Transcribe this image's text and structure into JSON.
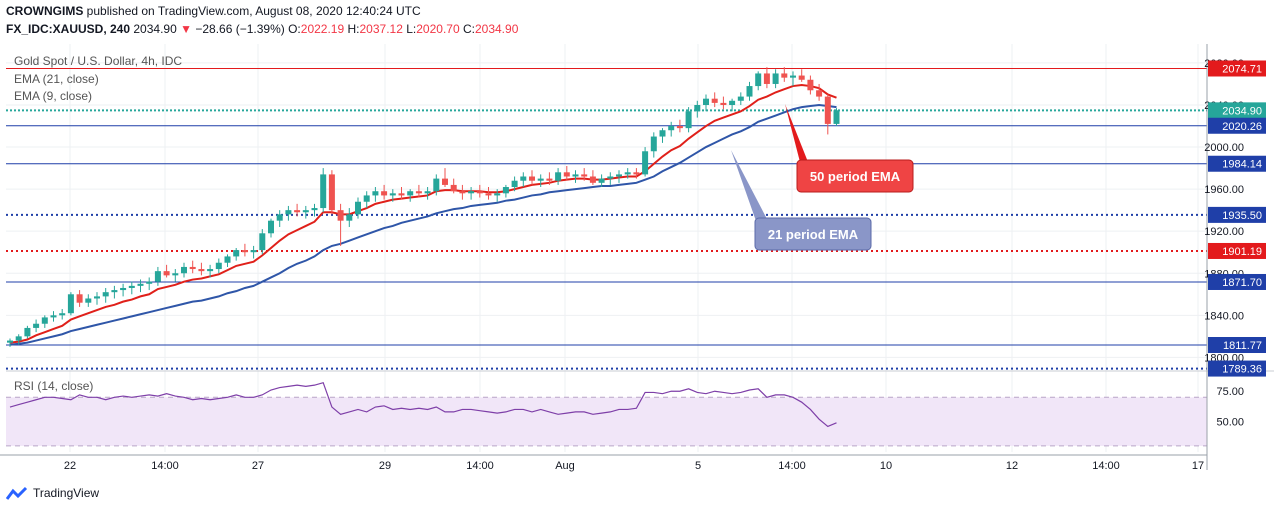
{
  "header": {
    "publisher": "CROWNGIMS",
    "published_text": "published on TradingView.com, August 08, 2020 12:40:24 UTC",
    "symbol": "FX_IDC:XAUUSD, 240",
    "price": "2034.90",
    "change_arrow": "▼",
    "change": "−28.66 (−1.39%)",
    "o_label": "O:",
    "o": "2022.19",
    "h_label": "H:",
    "h": "2037.12",
    "l_label": "L:",
    "l": "2020.70",
    "c_label": "C:",
    "c": "2034.90"
  },
  "legend": {
    "title": "Gold Spot / U.S. Dollar, 4h, IDC",
    "ema21": "EMA (21, close)",
    "ema9": "EMA (9, close)",
    "rsi": "RSI (14, close)"
  },
  "annotations": {
    "ema50_label": "50 period EMA",
    "ema21_label": "21 period EMA"
  },
  "footer": {
    "brand": "TradingView"
  },
  "colors": {
    "up": "#26a69a",
    "down": "#ef5350",
    "ema_fast": "#e0201a",
    "ema_slow": "#2f56a8",
    "rsi": "#7e3fa8",
    "rsi_band": "#f1e6f8",
    "level_red": "#e31a1c",
    "level_blue": "#1f3fa8"
  },
  "chart_data": {
    "type": "candlestick",
    "title": "Gold Spot / U.S. Dollar, 4h, IDC",
    "price_axis_ticks": [
      2080.0,
      2040.0,
      2000.0,
      1960.0,
      1920.0,
      1880.0,
      1840.0,
      1800.0
    ],
    "price_axis_ticks_text": [
      "2080.00",
      "2040.00",
      "2000.00",
      "1960.00",
      "1920.00",
      "1880.00",
      "1840.00",
      "1800.00"
    ],
    "x_ticks": [
      "22",
      "14:00",
      "27",
      "29",
      "14:00",
      "Aug",
      "5",
      "14:00",
      "10",
      "12",
      "14:00",
      "17"
    ],
    "levels": [
      {
        "value": 2074.71,
        "label": "2074.71",
        "color": "red",
        "style": "solid"
      },
      {
        "value": 2034.9,
        "label": "2034.90",
        "color": "green",
        "style": "dotted"
      },
      {
        "value": 2020.26,
        "label": "2020.26",
        "color": "blue",
        "style": "solid"
      },
      {
        "value": 1984.14,
        "label": "1984.14",
        "color": "blue",
        "style": "solid"
      },
      {
        "value": 1935.5,
        "label": "1935.50",
        "color": "blue",
        "style": "dotted"
      },
      {
        "value": 1901.19,
        "label": "1901.19",
        "color": "red",
        "style": "dotted"
      },
      {
        "value": 1871.7,
        "label": "1871.70",
        "color": "blue",
        "style": "solid"
      },
      {
        "value": 1811.77,
        "label": "1811.77",
        "color": "blue",
        "style": "solid"
      },
      {
        "value": 1789.36,
        "label": "1789.36",
        "color": "blue",
        "style": "dotted"
      }
    ],
    "rsi_ticks": [
      75.0,
      50.0
    ],
    "rsi_ticks_text": [
      "75.00",
      "50.00"
    ],
    "rsi_band": [
      70,
      30
    ],
    "candles_ohlc": [
      [
        1814,
        1818,
        1810,
        1816
      ],
      [
        1816,
        1822,
        1812,
        1820
      ],
      [
        1820,
        1830,
        1818,
        1828
      ],
      [
        1828,
        1836,
        1824,
        1832
      ],
      [
        1832,
        1840,
        1828,
        1838
      ],
      [
        1838,
        1844,
        1834,
        1840
      ],
      [
        1840,
        1846,
        1836,
        1842
      ],
      [
        1842,
        1862,
        1840,
        1860
      ],
      [
        1860,
        1864,
        1848,
        1852
      ],
      [
        1852,
        1860,
        1848,
        1856
      ],
      [
        1856,
        1862,
        1850,
        1858
      ],
      [
        1858,
        1866,
        1852,
        1862
      ],
      [
        1862,
        1868,
        1856,
        1864
      ],
      [
        1864,
        1870,
        1858,
        1866
      ],
      [
        1866,
        1872,
        1860,
        1868
      ],
      [
        1868,
        1874,
        1862,
        1870
      ],
      [
        1870,
        1876,
        1864,
        1872
      ],
      [
        1872,
        1886,
        1868,
        1882
      ],
      [
        1882,
        1888,
        1876,
        1878
      ],
      [
        1878,
        1884,
        1872,
        1880
      ],
      [
        1880,
        1890,
        1876,
        1886
      ],
      [
        1886,
        1892,
        1880,
        1884
      ],
      [
        1884,
        1890,
        1878,
        1882
      ],
      [
        1882,
        1888,
        1876,
        1884
      ],
      [
        1884,
        1894,
        1880,
        1890
      ],
      [
        1890,
        1898,
        1886,
        1896
      ],
      [
        1896,
        1904,
        1892,
        1902
      ],
      [
        1902,
        1908,
        1896,
        1900
      ],
      [
        1900,
        1906,
        1894,
        1902
      ],
      [
        1902,
        1922,
        1898,
        1918
      ],
      [
        1918,
        1932,
        1914,
        1930
      ],
      [
        1930,
        1940,
        1924,
        1936
      ],
      [
        1936,
        1944,
        1930,
        1940
      ],
      [
        1940,
        1946,
        1934,
        1938
      ],
      [
        1938,
        1944,
        1932,
        1940
      ],
      [
        1940,
        1946,
        1934,
        1942
      ],
      [
        1942,
        1980,
        1938,
        1974
      ],
      [
        1974,
        1978,
        1936,
        1940
      ],
      [
        1940,
        1946,
        1906,
        1930
      ],
      [
        1930,
        1942,
        1924,
        1936
      ],
      [
        1936,
        1952,
        1932,
        1948
      ],
      [
        1948,
        1958,
        1942,
        1954
      ],
      [
        1954,
        1962,
        1948,
        1958
      ],
      [
        1958,
        1964,
        1950,
        1954
      ],
      [
        1954,
        1960,
        1948,
        1956
      ],
      [
        1956,
        1962,
        1950,
        1954
      ],
      [
        1954,
        1960,
        1948,
        1958
      ],
      [
        1958,
        1964,
        1952,
        1956
      ],
      [
        1956,
        1962,
        1950,
        1958
      ],
      [
        1958,
        1974,
        1954,
        1970
      ],
      [
        1970,
        1980,
        1962,
        1964
      ],
      [
        1964,
        1970,
        1956,
        1958
      ],
      [
        1958,
        1964,
        1950,
        1956
      ],
      [
        1956,
        1962,
        1950,
        1958
      ],
      [
        1958,
        1964,
        1952,
        1956
      ],
      [
        1956,
        1962,
        1950,
        1954
      ],
      [
        1954,
        1960,
        1948,
        1956
      ],
      [
        1956,
        1964,
        1952,
        1962
      ],
      [
        1962,
        1972,
        1958,
        1968
      ],
      [
        1968,
        1976,
        1962,
        1972
      ],
      [
        1972,
        1978,
        1964,
        1968
      ],
      [
        1968,
        1974,
        1962,
        1970
      ],
      [
        1970,
        1976,
        1964,
        1968
      ],
      [
        1968,
        1980,
        1964,
        1976
      ],
      [
        1976,
        1982,
        1968,
        1972
      ],
      [
        1972,
        1978,
        1966,
        1974
      ],
      [
        1974,
        1980,
        1968,
        1972
      ],
      [
        1972,
        1978,
        1964,
        1966
      ],
      [
        1966,
        1974,
        1962,
        1970
      ],
      [
        1970,
        1976,
        1964,
        1972
      ],
      [
        1972,
        1978,
        1966,
        1974
      ],
      [
        1974,
        1980,
        1970,
        1976
      ],
      [
        1976,
        1980,
        1970,
        1974
      ],
      [
        1974,
        2000,
        1972,
        1996
      ],
      [
        1996,
        2014,
        1990,
        2010
      ],
      [
        2010,
        2018,
        2004,
        2016
      ],
      [
        2016,
        2024,
        2010,
        2020
      ],
      [
        2020,
        2026,
        2014,
        2018
      ],
      [
        2018,
        2038,
        2014,
        2034
      ],
      [
        2034,
        2044,
        2028,
        2040
      ],
      [
        2040,
        2050,
        2034,
        2046
      ],
      [
        2046,
        2052,
        2038,
        2042
      ],
      [
        2042,
        2048,
        2036,
        2040
      ],
      [
        2040,
        2046,
        2034,
        2044
      ],
      [
        2044,
        2052,
        2040,
        2048
      ],
      [
        2048,
        2062,
        2044,
        2058
      ],
      [
        2058,
        2072,
        2054,
        2070
      ],
      [
        2070,
        2076,
        2056,
        2060
      ],
      [
        2060,
        2074,
        2056,
        2070
      ],
      [
        2070,
        2076,
        2062,
        2066
      ],
      [
        2066,
        2072,
        2058,
        2068
      ],
      [
        2068,
        2074,
        2062,
        2064
      ],
      [
        2064,
        2068,
        2050,
        2054
      ],
      [
        2054,
        2060,
        2044,
        2048
      ],
      [
        2048,
        2050,
        2012,
        2022
      ],
      [
        2022,
        2037,
        2020,
        2035
      ]
    ],
    "ema_fast_values": [
      1814,
      1815,
      1817,
      1821,
      1824,
      1827,
      1830,
      1836,
      1839,
      1842,
      1845,
      1848,
      1850,
      1853,
      1855,
      1858,
      1860,
      1865,
      1867,
      1869,
      1872,
      1874,
      1875,
      1877,
      1879,
      1883,
      1887,
      1889,
      1891,
      1897,
      1904,
      1911,
      1917,
      1921,
      1925,
      1929,
      1938,
      1938,
      1936,
      1936,
      1939,
      1942,
      1946,
      1948,
      1950,
      1951,
      1952,
      1953,
      1954,
      1958,
      1959,
      1959,
      1958,
      1958,
      1958,
      1957,
      1957,
      1958,
      1960,
      1962,
      1964,
      1965,
      1966,
      1968,
      1969,
      1970,
      1970,
      1969,
      1969,
      1970,
      1971,
      1972,
      1972,
      1977,
      1984,
      1991,
      1997,
      2001,
      2008,
      2014,
      2020,
      2025,
      2028,
      2031,
      2034,
      2039,
      2045,
      2048,
      2052,
      2055,
      2058,
      2059,
      2058,
      2056,
      2050,
      2047
    ],
    "ema_slow_values": [
      1812,
      1813,
      1814,
      1816,
      1818,
      1820,
      1822,
      1825,
      1827,
      1829,
      1831,
      1833,
      1835,
      1837,
      1839,
      1841,
      1843,
      1845,
      1847,
      1849,
      1851,
      1853,
      1854,
      1856,
      1858,
      1861,
      1863,
      1866,
      1868,
      1872,
      1876,
      1880,
      1885,
      1889,
      1892,
      1896,
      1902,
      1906,
      1908,
      1911,
      1914,
      1917,
      1920,
      1923,
      1925,
      1928,
      1930,
      1932,
      1934,
      1937,
      1939,
      1941,
      1942,
      1944,
      1945,
      1946,
      1947,
      1949,
      1950,
      1952,
      1954,
      1955,
      1957,
      1958,
      1959,
      1960,
      1961,
      1962,
      1963,
      1963,
      1964,
      1965,
      1966,
      1969,
      1972,
      1977,
      1981,
      1985,
      1990,
      1995,
      2000,
      2004,
      2008,
      2012,
      2015,
      2019,
      2024,
      2027,
      2030,
      2033,
      2036,
      2038,
      2039,
      2040,
      2039,
      2038
    ],
    "rsi_values": [
      62,
      64,
      66,
      68,
      70,
      70,
      69,
      68,
      72,
      70,
      70,
      68,
      70,
      71,
      70,
      71,
      72,
      71,
      73,
      71,
      70,
      68,
      69,
      68,
      69,
      70,
      72,
      70,
      70,
      72,
      76,
      78,
      79,
      80,
      79,
      80,
      82,
      62,
      56,
      58,
      60,
      58,
      62,
      63,
      60,
      61,
      60,
      61,
      60,
      62,
      58,
      58,
      60,
      60,
      59,
      58,
      57,
      58,
      60,
      60,
      58,
      60,
      58,
      56,
      57,
      58,
      58,
      56,
      57,
      58,
      60,
      60,
      61,
      74,
      74,
      73,
      75,
      75,
      77,
      74,
      73,
      75,
      74,
      73,
      74,
      76,
      77,
      70,
      72,
      72,
      70,
      66,
      60,
      52,
      46,
      49
    ]
  }
}
